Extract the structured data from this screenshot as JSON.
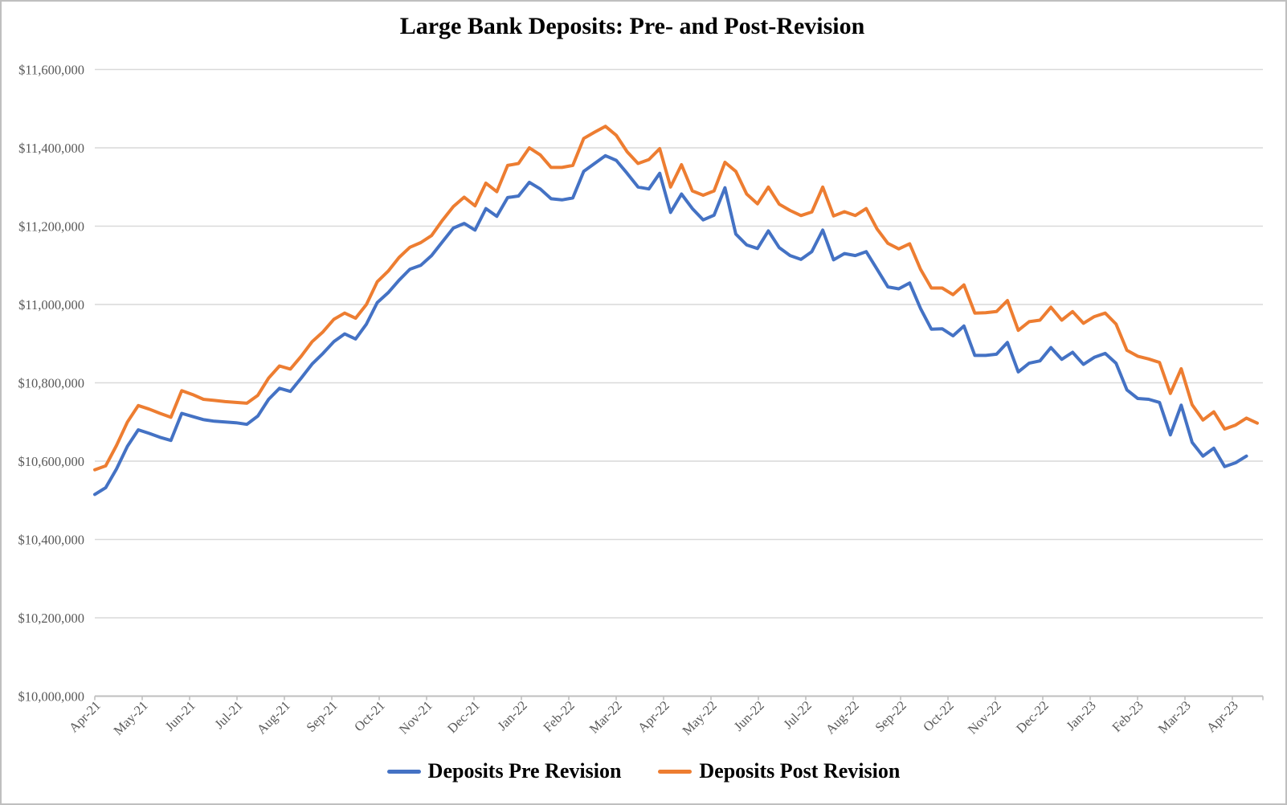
{
  "chart_data": {
    "type": "line",
    "title": "Large Bank Deposits: Pre- and Post-Revision",
    "x_frequency": "weekly",
    "x_tick_labels": [
      "Apr-21",
      "May-21",
      "Jun-21",
      "Jul-21",
      "Aug-21",
      "Sep-21",
      "Oct-21",
      "Nov-21",
      "Dec-21",
      "Jan-22",
      "Feb-22",
      "Mar-22",
      "Apr-22",
      "May-22",
      "Jun-22",
      "Jul-22",
      "Aug-22",
      "Sep-22",
      "Oct-22",
      "Nov-22",
      "Dec-22",
      "Jan-23",
      "Feb-23",
      "Mar-23",
      "Apr-23"
    ],
    "y_axis": {
      "tick_values": [
        11600000,
        11400000,
        11200000,
        11000000,
        10800000,
        10600000,
        10400000,
        10200000,
        10000000
      ],
      "min": 10000000,
      "max": 11600000,
      "format": "$#,##0"
    },
    "grid": "horizontal",
    "legend_position": "bottom",
    "series": [
      {
        "name": "Deposits Pre Revision",
        "color": "#4472C4",
        "values": [
          10515000,
          10532000,
          10580000,
          10638000,
          10680000,
          10671000,
          10661000,
          10653000,
          10722000,
          10714000,
          10706000,
          10702000,
          10700000,
          10698000,
          10694000,
          10715000,
          10758000,
          10786000,
          10778000,
          10812000,
          10848000,
          10875000,
          10905000,
          10925000,
          10912000,
          10950000,
          11005000,
          11030000,
          11062000,
          11090000,
          11100000,
          11125000,
          11160000,
          11195000,
          11207000,
          11190000,
          11245000,
          11225000,
          11273000,
          11277000,
          11312000,
          11295000,
          11270000,
          11267000,
          11272000,
          11340000,
          11360000,
          11380000,
          11368000,
          11335000,
          11300000,
          11295000,
          11335000,
          11235000,
          11282000,
          11245000,
          11216000,
          11228000,
          11298000,
          11180000,
          11152000,
          11143000,
          11188000,
          11145000,
          11125000,
          11115000,
          11135000,
          11190000,
          11114000,
          11130000,
          11125000,
          11135000,
          11090000,
          11045000,
          11040000,
          11055000,
          10990000,
          10937000,
          10938000,
          10920000,
          10945000,
          10870000,
          10870000,
          10873000,
          10903000,
          10828000,
          10850000,
          10856000,
          10890000,
          10860000,
          10878000,
          10847000,
          10865000,
          10875000,
          10850000,
          10782000,
          10760000,
          10758000,
          10750000,
          10667000,
          10743000,
          10648000,
          10613000,
          10633000,
          10586000,
          10596000,
          10613000
        ]
      },
      {
        "name": "Deposits Post Revision",
        "color": "#ED7D31",
        "values": [
          10578000,
          10588000,
          10640000,
          10700000,
          10742000,
          10733000,
          10722000,
          10712000,
          10780000,
          10770000,
          10758000,
          10755000,
          10752000,
          10750000,
          10748000,
          10768000,
          10812000,
          10843000,
          10835000,
          10868000,
          10905000,
          10930000,
          10962000,
          10978000,
          10965000,
          11000000,
          11058000,
          11085000,
          11120000,
          11146000,
          11158000,
          11176000,
          11215000,
          11250000,
          11274000,
          11252000,
          11310000,
          11288000,
          11355000,
          11360000,
          11400000,
          11382000,
          11350000,
          11350000,
          11355000,
          11424000,
          11440000,
          11455000,
          11432000,
          11390000,
          11360000,
          11370000,
          11398000,
          11300000,
          11357000,
          11290000,
          11279000,
          11290000,
          11363000,
          11340000,
          11282000,
          11257000,
          11300000,
          11256000,
          11240000,
          11227000,
          11236000,
          11300000,
          11226000,
          11237000,
          11227000,
          11245000,
          11193000,
          11156000,
          11142000,
          11155000,
          11090000,
          11042000,
          11042000,
          11025000,
          11050000,
          10978000,
          10979000,
          10982000,
          11010000,
          10934000,
          10956000,
          10960000,
          10993000,
          10960000,
          10982000,
          10952000,
          10969000,
          10978000,
          10950000,
          10883000,
          10868000,
          10861000,
          10852000,
          10773000,
          10836000,
          10744000,
          10705000,
          10726000,
          10682000,
          10692000,
          10710000,
          10697000
        ]
      }
    ],
    "style_colors": {
      "gridline": "#D9D9D9",
      "axis_line": "#BFBFBF",
      "tick_label": "#595959",
      "frame_border": "#BFBFBF"
    }
  }
}
